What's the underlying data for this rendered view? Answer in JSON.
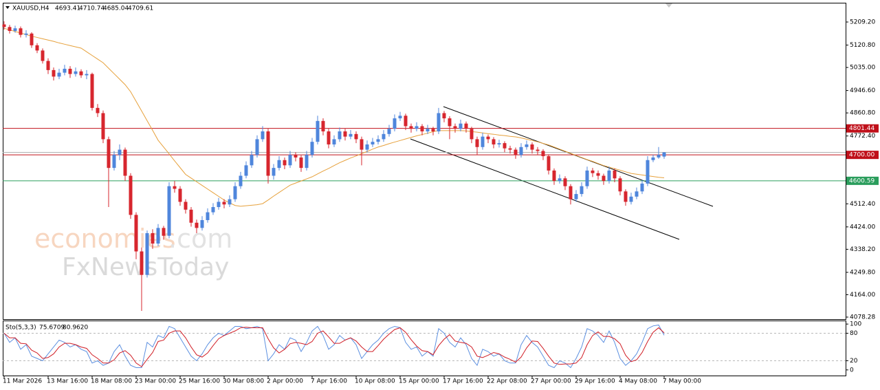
{
  "chart_data": [
    {
      "type": "candlestick",
      "title": "XAUUSD,H4",
      "categories": [
        "11 Mar 2026",
        null,
        null,
        null,
        null,
        null,
        null,
        null,
        "13 Mar 16:00",
        null,
        null,
        null,
        null,
        null,
        null,
        null,
        "18 Mar 08:00",
        null,
        null,
        null,
        null,
        null,
        null,
        null,
        "23 Mar 00:00",
        null,
        null,
        null,
        null,
        null,
        null,
        null,
        "25 Mar 16:00",
        null,
        null,
        null,
        null,
        null,
        null,
        null,
        "30 Mar 08:00",
        null,
        null,
        null,
        null,
        null,
        null,
        null,
        "2 Apr 00:00",
        null,
        null,
        null,
        null,
        null,
        null,
        null,
        "7 Apr 16:00",
        null,
        null,
        null,
        null,
        null,
        null,
        null,
        "10 Apr 08:00",
        null,
        null,
        null,
        null,
        null,
        null,
        null,
        "15 Apr 00:00",
        null,
        null,
        null,
        null,
        null,
        null,
        null,
        "17 Apr 16:00",
        null,
        null,
        null,
        null,
        null,
        null,
        null,
        "22 Apr 08:00",
        null,
        null,
        null,
        null,
        null,
        null,
        null,
        "27 Apr 00:00",
        null,
        null,
        null,
        null,
        null,
        null,
        null,
        "29 Apr 16:00",
        null,
        null,
        null,
        null,
        null,
        null,
        null,
        "4 May 08:00",
        null,
        null,
        null,
        null,
        null,
        null,
        null,
        "7 May 00:00"
      ],
      "open": [
        5200,
        5190,
        5175,
        5185,
        5160,
        5165,
        5120,
        5100,
        5060,
        5025,
        5000,
        5015,
        5030,
        5010,
        5020,
        5005,
        5010,
        4880,
        4860,
        4760,
        4650,
        4700,
        4720,
        4620,
        4470,
        4330,
        4240,
        4400,
        4360,
        4420,
        4390,
        4580,
        4570,
        4520,
        4490,
        4440,
        4420,
        4450,
        4480,
        4500,
        4520,
        4510,
        4530,
        4580,
        4620,
        4660,
        4700,
        4760,
        4790,
        4620,
        4650,
        4680,
        4660,
        4700,
        4690,
        4650,
        4700,
        4750,
        4830,
        4790,
        4740,
        4760,
        4790,
        4770,
        4780,
        4760,
        4720,
        4740,
        4750,
        4760,
        4780,
        4800,
        4840,
        4850,
        4810,
        4800,
        4810,
        4790,
        4800,
        4790,
        4860,
        4840,
        4810,
        4800,
        4820,
        4800,
        4760,
        4730,
        4770,
        4760,
        4740,
        4745,
        4725,
        4720,
        4700,
        4730,
        4740,
        4720,
        4715,
        4695,
        4640,
        4600,
        4610,
        4580,
        4530,
        4550,
        4580,
        4640,
        4630,
        4620,
        4600,
        4640,
        4610,
        4560,
        4520,
        4540,
        4560,
        4590,
        4680,
        4690,
        4693.41
      ],
      "high": [
        5212,
        5198,
        5195,
        5192,
        5178,
        5170,
        5128,
        5108,
        5070,
        5035,
        5030,
        5045,
        5040,
        5035,
        5028,
        5025,
        5015,
        4895,
        4870,
        4770,
        4715,
        4740,
        4728,
        4630,
        4480,
        4345,
        4410,
        4415,
        4435,
        4428,
        4595,
        4600,
        4580,
        4530,
        4500,
        4452,
        4465,
        4495,
        4515,
        4535,
        4530,
        4545,
        4595,
        4635,
        4675,
        4715,
        4775,
        4810,
        4800,
        4665,
        4695,
        4690,
        4715,
        4710,
        4698,
        4715,
        4765,
        4850,
        4840,
        4800,
        4775,
        4805,
        4800,
        4795,
        4790,
        4770,
        4755,
        4765,
        4775,
        4795,
        4815,
        4855,
        4865,
        4858,
        4820,
        4825,
        4818,
        4815,
        4808,
        4880,
        4868,
        4848,
        4820,
        4835,
        4828,
        4808,
        4770,
        4785,
        4778,
        4768,
        4758,
        4752,
        4735,
        4728,
        4745,
        4755,
        4748,
        4730,
        4722,
        4702,
        4648,
        4625,
        4618,
        4588,
        4565,
        4595,
        4655,
        4650,
        4640,
        4628,
        4655,
        4648,
        4618,
        4568,
        4555,
        4575,
        4605,
        4695,
        4700,
        4730,
        4710.74
      ],
      "low": [
        5180,
        5165,
        5168,
        5150,
        5150,
        5110,
        5090,
        5050,
        5010,
        4985,
        4990,
        5005,
        4995,
        5000,
        4995,
        4990,
        4870,
        4845,
        4745,
        4500,
        4640,
        4680,
        4600,
        4455,
        4300,
        4102,
        4230,
        4340,
        4350,
        4375,
        4380,
        4555,
        4505,
        4475,
        4425,
        4400,
        4410,
        4440,
        4470,
        4490,
        4495,
        4500,
        4520,
        4570,
        4610,
        4650,
        4690,
        4750,
        4590,
        4605,
        4640,
        4645,
        4650,
        4675,
        4635,
        4640,
        4690,
        4740,
        4775,
        4725,
        4730,
        4750,
        4755,
        4760,
        4745,
        4660,
        4710,
        4730,
        4740,
        4750,
        4770,
        4790,
        4830,
        4795,
        4785,
        4790,
        4775,
        4780,
        4775,
        4780,
        4825,
        4760,
        4785,
        4790,
        4785,
        4745,
        4700,
        4720,
        4745,
        4725,
        4728,
        4710,
        4705,
        4685,
        4690,
        4720,
        4705,
        4700,
        4680,
        4625,
        4585,
        4590,
        4565,
        4510,
        4520,
        4540,
        4570,
        4615,
        4605,
        4585,
        4590,
        4595,
        4545,
        4505,
        4510,
        4530,
        4550,
        4580,
        4672,
        4685,
        4685.04
      ],
      "close": [
        5190,
        5175,
        5185,
        5160,
        5165,
        5120,
        5100,
        5060,
        5025,
        5000,
        5015,
        5030,
        5010,
        5020,
        5005,
        5010,
        4880,
        4860,
        4760,
        4650,
        4700,
        4720,
        4620,
        4470,
        4330,
        4240,
        4400,
        4360,
        4420,
        4390,
        4580,
        4570,
        4520,
        4490,
        4440,
        4420,
        4450,
        4480,
        4500,
        4520,
        4510,
        4530,
        4580,
        4620,
        4660,
        4700,
        4760,
        4790,
        4620,
        4650,
        4680,
        4660,
        4700,
        4690,
        4650,
        4700,
        4750,
        4830,
        4790,
        4740,
        4760,
        4790,
        4770,
        4780,
        4760,
        4720,
        4740,
        4750,
        4760,
        4780,
        4800,
        4840,
        4850,
        4810,
        4800,
        4810,
        4790,
        4800,
        4790,
        4860,
        4840,
        4810,
        4800,
        4820,
        4800,
        4760,
        4730,
        4770,
        4760,
        4740,
        4745,
        4725,
        4720,
        4700,
        4730,
        4740,
        4720,
        4715,
        4695,
        4640,
        4600,
        4610,
        4580,
        4530,
        4550,
        4580,
        4640,
        4630,
        4620,
        4600,
        4640,
        4610,
        4560,
        4520,
        4540,
        4560,
        4590,
        4680,
        4690,
        4700,
        4709.61
      ],
      "up_color": "#4f86dc",
      "down_color": "#d7262e",
      "ma": {
        "color": "#e6a03a",
        "values": [
          5185,
          5179,
          5173,
          5167,
          5161,
          5155,
          5150,
          5145,
          5140,
          5135,
          5129,
          5124,
          5119,
          5114,
          5109,
          5095,
          5081,
          5067,
          5053,
          5032,
          5011,
          4990,
          4969,
          4942,
          4905,
          4868,
          4831,
          4794,
          4756,
          4730,
          4704,
          4677,
          4651,
          4625,
          4611,
          4597,
          4583,
          4569,
          4555,
          4541,
          4527,
          4516,
          4506,
          4503,
          4505,
          4507,
          4509,
          4513,
          4527,
          4542,
          4556,
          4570,
          4584,
          4592,
          4600,
          4608,
          4616,
          4627,
          4638,
          4648,
          4659,
          4670,
          4679,
          4688,
          4696,
          4705,
          4713,
          4722,
          4730,
          4736,
          4743,
          4749,
          4755,
          4761,
          4767,
          4773,
          4778,
          4783,
          4789,
          4793,
          4793,
          4793,
          4793,
          4793,
          4792,
          4789,
          4787,
          4784,
          4781,
          4779,
          4776,
          4774,
          4771,
          4769,
          4765,
          4760,
          4755,
          4750,
          4744,
          4738,
          4730,
          4722,
          4714,
          4706,
          4698,
          4690,
          4682,
          4675,
          4667,
          4659,
          4653,
          4647,
          4641,
          4635,
          4629,
          4626,
          4623,
          4620,
          4617,
          4614,
          4612
        ]
      },
      "levels": [
        {
          "value": 4801.44,
          "label": "4801.44",
          "color": "#c0101a"
        },
        {
          "value": 4700,
          "label": "4700.00",
          "color": "#c0101a"
        },
        {
          "value": 4600.59,
          "label": "4600.59",
          "color": "#2a9d5c"
        }
      ],
      "ylim": [
        4070.4,
        5283.0
      ],
      "yticks": [
        {
          "value": 5209.2,
          "label": "5209.20"
        },
        {
          "value": 5120.8,
          "label": "5120.80"
        },
        {
          "value": 5035,
          "label": "5035.00"
        },
        {
          "value": 4946.6,
          "label": "4946.60"
        },
        {
          "value": 4860.8,
          "label": "4860.80"
        },
        {
          "value": 4772.4,
          "label": "4772.40"
        },
        {
          "value": 4512.4,
          "label": "4512.40"
        },
        {
          "value": 4424,
          "label": "4424.00"
        },
        {
          "value": 4338.2,
          "label": "4338.20"
        },
        {
          "value": 4249.8,
          "label": "4249.80"
        },
        {
          "value": 4164,
          "label": "4164.00"
        },
        {
          "value": 4078.28,
          "label": "4078.28"
        }
      ],
      "watermark": [
        "economies",
        ".com",
        "FxNewsToday"
      ]
    },
    {
      "type": "line",
      "title": "Sto(5,3,3)",
      "readout": [
        75.6709,
        {
          "value": 80.962,
          "label": "80.9620"
        }
      ],
      "series": [
        {
          "color": "#5b8fe0",
          "values": [
            80,
            60,
            70,
            45,
            55,
            30,
            25,
            20,
            35,
            50,
            65,
            60,
            50,
            55,
            45,
            40,
            15,
            20,
            10,
            15,
            40,
            55,
            30,
            10,
            5,
            5,
            60,
            50,
            75,
            70,
            95,
            90,
            70,
            50,
            30,
            20,
            35,
            55,
            70,
            80,
            75,
            85,
            95,
            95,
            90,
            92,
            95,
            90,
            20,
            35,
            55,
            45,
            70,
            65,
            40,
            60,
            85,
            95,
            75,
            45,
            55,
            75,
            65,
            70,
            55,
            25,
            40,
            55,
            65,
            80,
            90,
            95,
            92,
            60,
            45,
            50,
            30,
            40,
            30,
            90,
            80,
            60,
            50,
            70,
            55,
            25,
            10,
            45,
            40,
            30,
            35,
            20,
            15,
            15,
            55,
            75,
            60,
            50,
            30,
            10,
            5,
            20,
            15,
            5,
            25,
            50,
            90,
            85,
            75,
            60,
            85,
            60,
            25,
            10,
            20,
            35,
            60,
            90,
            96,
            98,
            75.6709
          ]
        },
        {
          "color": "#d01c24",
          "values": [
            80,
            70,
            70,
            58,
            57,
            43,
            37,
            25,
            27,
            35,
            50,
            58,
            58,
            55,
            50,
            47,
            33,
            25,
            15,
            15,
            22,
            37,
            42,
            32,
            15,
            7,
            23,
            38,
            62,
            65,
            80,
            85,
            85,
            70,
            50,
            33,
            28,
            37,
            53,
            68,
            75,
            80,
            85,
            92,
            93,
            92,
            92,
            92,
            68,
            48,
            37,
            45,
            57,
            60,
            58,
            55,
            62,
            80,
            85,
            72,
            58,
            58,
            65,
            70,
            63,
            50,
            40,
            40,
            53,
            67,
            78,
            88,
            92,
            82,
            66,
            52,
            42,
            40,
            33,
            53,
            67,
            77,
            63,
            60,
            58,
            50,
            30,
            27,
            32,
            38,
            35,
            28,
            23,
            17,
            28,
            48,
            63,
            62,
            47,
            30,
            15,
            12,
            13,
            13,
            15,
            27,
            55,
            75,
            83,
            73,
            73,
            68,
            57,
            32,
            18,
            22,
            38,
            62,
            82,
            92,
            80.962
          ]
        }
      ],
      "levels": [
        80,
        20
      ],
      "ylim": [
        -12.3,
        107.7
      ],
      "yticks": [
        100,
        80,
        20,
        0
      ]
    }
  ]
}
